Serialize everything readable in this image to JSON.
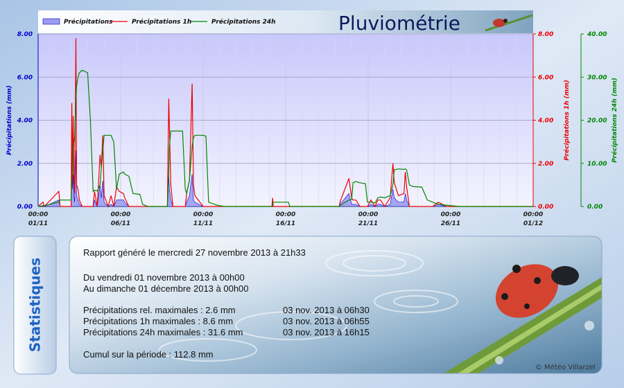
{
  "chart_data": {
    "type": "line",
    "title": "Pluviométrie",
    "x": [
      "01/11 00:00",
      "01/11 07:00",
      "01/11 09:00",
      "02/11 06:00",
      "02/11 08:00",
      "03/11 00:00",
      "03/11 01:00",
      "03/11 02:00",
      "03/11 03:00",
      "03/11 04:00",
      "03/11 05:00",
      "03/11 07:00",
      "03/11 08:00",
      "03/11 10:00",
      "03/11 12:00",
      "03/11 16:00",
      "04/11 00:00",
      "04/11 04:00",
      "04/11 08:00",
      "04/11 10:00",
      "04/11 14:00",
      "04/11 18:00",
      "04/11 20:00",
      "04/11 22:00",
      "05/11 00:00",
      "05/11 06:00",
      "05/11 10:00",
      "05/11 14:00",
      "05/11 18:00",
      "05/11 22:00",
      "06/11 04:00",
      "06/11 06:00",
      "06/11 12:00",
      "06/11 18:00",
      "07/11 04:00",
      "07/11 08:00",
      "07/11 16:00",
      "08/11 20:00",
      "08/11 22:00",
      "08/11 23:00",
      "09/11 01:00",
      "09/11 04:00",
      "09/11 18:00",
      "09/11 22:00",
      "10/11 00:00",
      "10/11 04:00",
      "10/11 08:00",
      "10/11 10:00",
      "10/11 12:00",
      "11/11 00:00",
      "11/11 04:00",
      "11/11 08:00",
      "11/11 20:00",
      "12/11 06:00",
      "15/11 04:00",
      "15/11 05:00",
      "15/11 06:00",
      "16/11 04:00",
      "16/11 06:00",
      "19/11 06:00",
      "19/11 07:00",
      "19/11 20:00",
      "20/11 00:00",
      "20/11 02:00",
      "20/11 06:00",
      "20/11 12:00",
      "20/11 20:00",
      "20/11 23:00",
      "21/11 04:00",
      "21/11 10:00",
      "21/11 14:00",
      "21/11 18:00",
      "22/11 00:00",
      "22/11 08:00",
      "22/11 12:00",
      "22/11 14:00",
      "22/11 20:00",
      "23/11 04:00",
      "23/11 06:00",
      "23/11 08:00",
      "23/11 12:00",
      "23/11 18:00",
      "24/11 06:00",
      "24/11 14:00",
      "24/11 22:00",
      "25/11 06:00",
      "25/11 18:00",
      "26/11 12:00",
      "01/12 00:00"
    ],
    "series": [
      {
        "name": "Précipitations",
        "color": "#0000cc",
        "fill": "#9c9cf0",
        "style": "area",
        "axis": "y",
        "values": [
          0,
          0,
          0,
          0.3,
          0,
          0,
          2.3,
          0.8,
          1.5,
          0.5,
          0.2,
          2.6,
          0.5,
          0.3,
          0.1,
          0,
          0,
          0,
          0,
          0.3,
          0,
          1.0,
          0.4,
          1.2,
          0.2,
          0,
          0.1,
          0,
          0.3,
          0.3,
          0.3,
          0.2,
          0,
          0,
          0,
          0,
          0,
          0,
          1.4,
          0.8,
          0.3,
          0,
          0,
          0,
          0.2,
          0.5,
          1.5,
          0.3,
          0.2,
          0,
          0,
          0,
          0,
          0,
          0,
          0.2,
          0,
          0,
          0,
          0,
          0.1,
          0.6,
          0.1,
          0.1,
          0.1,
          0,
          0,
          0,
          0.1,
          0,
          0.1,
          0.1,
          0,
          0.1,
          0.8,
          0.4,
          0.2,
          0.2,
          0.6,
          0.3,
          0,
          0,
          0,
          0,
          0,
          0.1,
          0,
          0,
          0
        ]
      },
      {
        "name": "Précipitations 1h",
        "color": "#ee0000",
        "style": "line",
        "axis": "y2",
        "values": [
          0,
          0.2,
          0,
          0.7,
          0,
          0,
          4.8,
          1.2,
          4.2,
          1.0,
          0.6,
          7.8,
          1.0,
          0.8,
          0.3,
          0,
          0,
          0,
          0,
          0.7,
          0,
          2.4,
          1.8,
          3.3,
          0.5,
          0,
          0.5,
          0,
          0.9,
          0.7,
          0.6,
          0.4,
          0,
          0,
          0,
          0,
          0,
          0,
          5.0,
          3.6,
          1.0,
          0,
          0,
          0,
          0.6,
          1.2,
          5.7,
          1.0,
          0.5,
          0,
          0,
          0,
          0,
          0,
          0,
          0.4,
          0,
          0,
          0,
          0,
          0.2,
          1.3,
          0.4,
          0.3,
          0.3,
          0,
          0,
          0,
          0.3,
          0,
          0.3,
          0.3,
          0,
          0.4,
          2.0,
          1.1,
          0.5,
          0.6,
          1.6,
          0.9,
          0,
          0,
          0,
          0,
          0,
          0.2,
          0,
          0,
          0
        ]
      },
      {
        "name": "Précipitations 24h",
        "color": "#008800",
        "style": "line",
        "axis": "y3",
        "values": [
          0,
          0.2,
          0.2,
          1.0,
          1.5,
          1.5,
          6,
          8,
          13,
          15,
          16,
          25,
          28,
          30,
          31,
          31.6,
          31,
          20,
          3.5,
          3.8,
          3.6,
          5,
          9,
          13,
          16.5,
          16.5,
          16.5,
          15,
          4,
          7.5,
          8,
          7.5,
          7,
          3,
          2.8,
          0.5,
          0,
          0,
          8,
          14,
          17.5,
          17.5,
          17.5,
          4,
          3,
          6,
          14,
          16,
          16.5,
          16.5,
          16.3,
          1,
          0.3,
          0,
          0,
          0.4,
          1.0,
          1.0,
          0,
          0,
          0.2,
          1.5,
          1.6,
          5.5,
          5.8,
          5.5,
          5.3,
          1,
          1,
          0.8,
          2,
          2.2,
          2,
          2.5,
          5,
          8.5,
          8.7,
          8.6,
          8.7,
          8.5,
          5,
          4.6,
          4.5,
          1.5,
          1,
          0.5,
          0.3,
          0,
          0
        ]
      }
    ],
    "xlim": [
      "01/11 00:00",
      "01/12 00:00"
    ],
    "xticks": [
      {
        "value": "01/11 00:00",
        "label": [
          "00:00",
          "01/11"
        ]
      },
      {
        "value": "06/11 00:00",
        "label": [
          "00:00",
          "06/11"
        ]
      },
      {
        "value": "11/11 00:00",
        "label": [
          "00:00",
          "11/11"
        ]
      },
      {
        "value": "16/11 00:00",
        "label": [
          "00:00",
          "16/11"
        ]
      },
      {
        "value": "21/11 00:00",
        "label": [
          "00:00",
          "21/11"
        ]
      },
      {
        "value": "26/11 00:00",
        "label": [
          "00:00",
          "26/11"
        ]
      },
      {
        "value": "01/12 00:00",
        "label": [
          "00:00",
          "01/12"
        ]
      }
    ],
    "ylabel": "Précipitations (mm)",
    "ylim": [
      0,
      8
    ],
    "yticks": [
      {
        "value": 0,
        "label": "0.00"
      },
      {
        "value": 2,
        "label": "2.00"
      },
      {
        "value": 4,
        "label": "4.00"
      },
      {
        "value": 6,
        "label": "6.00"
      },
      {
        "value": 8,
        "label": "8.00"
      }
    ],
    "y2label": "Précipitations 1h (mm)",
    "y2lim": [
      0,
      8
    ],
    "y2ticks": [
      {
        "value": 0,
        "label": "0.00"
      },
      {
        "value": 2,
        "label": "2.00"
      },
      {
        "value": 4,
        "label": "4.00"
      },
      {
        "value": 6,
        "label": "6.00"
      },
      {
        "value": 8,
        "label": "8.00"
      }
    ],
    "y3label": "Précipitations 24h (mm)",
    "y3lim": [
      0,
      40
    ],
    "y3ticks": [
      {
        "value": 0,
        "label": "0.00"
      },
      {
        "value": 10,
        "label": "10.00"
      },
      {
        "value": 20,
        "label": "20.00"
      },
      {
        "value": 30,
        "label": "30.00"
      },
      {
        "value": 40,
        "label": "40.00"
      }
    ],
    "grid": true
  },
  "panel": {
    "heading": "Statistiques",
    "report": "Rapport généré le mercredi 27 novembre 2013 à 21h33",
    "from": "Du vendredi 01 novembre 2013 à 00h00",
    "to": "Au dimanche 01 décembre 2013 à 00h00",
    "rows": [
      {
        "label": "Précipitations rel. maximales : 2.6 mm",
        "date": "03 nov. 2013 à 06h30"
      },
      {
        "label": "Précipitations 1h maximales : 8.6 mm",
        "date": "03 nov. 2013 à 06h55"
      },
      {
        "label": "Précipitations 24h maximales : 31.6 mm",
        "date": "03 nov. 2013 à 16h15"
      }
    ],
    "total": "Cumul sur la période : 112.8 mm",
    "credit": "© Météo Villarzel"
  }
}
